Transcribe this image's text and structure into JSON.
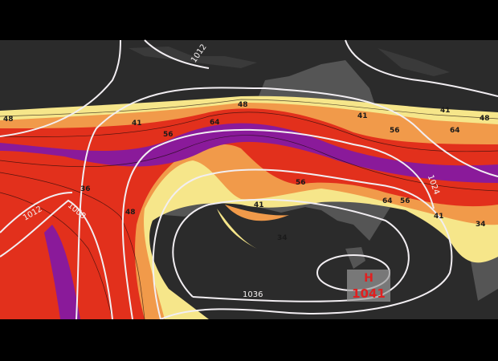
{
  "map": {
    "high_center": {
      "symbol": "H",
      "pressure": "1041"
    },
    "isobar_labels": [
      "1012",
      "1024",
      "1012",
      "1008",
      "1036"
    ],
    "wind_speed_labels": [
      "48",
      "41",
      "56",
      "64",
      "48",
      "41",
      "56",
      "64",
      "48",
      "36",
      "56",
      "48",
      "34",
      "64",
      "56",
      "41",
      "34",
      "41",
      "41"
    ],
    "colors": {
      "background": "#2b2b2b",
      "land": "#5a5a5a",
      "wind_light": "#f6e68a",
      "wind_mid": "#f19a4a",
      "wind_strong": "#e2301c",
      "wind_core": "#8a1a9a",
      "isobar": "#f2eef2",
      "high_label": "#e02020"
    }
  }
}
